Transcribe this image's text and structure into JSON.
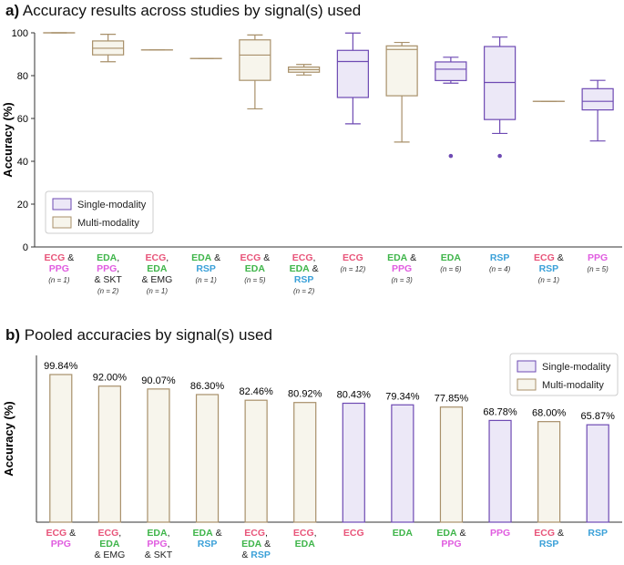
{
  "colors": {
    "single_fill": "#ece8f7",
    "single_edge": "#6e4ab3",
    "multi_fill": "#f7f5ec",
    "multi_edge": "#a8906a",
    "ECG": "#e8557a",
    "PPG": "#e05ce0",
    "EDA": "#3fb54a",
    "RSP": "#3aa0d8",
    "SKT": "#222222",
    "EMG": "#222222"
  },
  "chart_data": [
    {
      "panel": "a)",
      "type": "box",
      "title": "Accuracy results across studies by signal(s) used",
      "ylabel": "Accuracy (%)",
      "ylim": [
        0,
        100
      ],
      "yticks": [
        0,
        20,
        40,
        60,
        80,
        100
      ],
      "legend": {
        "position": "lower-left",
        "entries": [
          "Single-modality",
          "Multi-modality"
        ]
      },
      "groups": [
        {
          "label": [
            [
              "ECG",
              " &"
            ],
            [
              "PPG"
            ]
          ],
          "n": "(n = 1)",
          "modality": "multi",
          "min": 100,
          "q1": 100,
          "median": 100,
          "q3": 100,
          "max": 100,
          "outliers": []
        },
        {
          "label": [
            [
              "EDA",
              ","
            ],
            [
              "PPG",
              ","
            ],
            [
              "& SKT"
            ]
          ],
          "n": "(n = 2)",
          "modality": "multi",
          "min": 86.5,
          "q1": 89.7,
          "median": 92.8,
          "q3": 96.2,
          "max": 99.3,
          "outliers": []
        },
        {
          "label": [
            [
              "ECG",
              ","
            ],
            [
              "EDA"
            ],
            [
              "& EMG"
            ]
          ],
          "n": "(n = 1)",
          "modality": "multi",
          "min": 92,
          "q1": 92,
          "median": 92,
          "q3": 92,
          "max": 92,
          "outliers": []
        },
        {
          "label": [
            [
              "EDA",
              " &"
            ],
            [
              "RSP"
            ]
          ],
          "n": "(n = 1)",
          "modality": "multi",
          "min": 88,
          "q1": 88,
          "median": 88,
          "q3": 88,
          "max": 88,
          "outliers": []
        },
        {
          "label": [
            [
              "ECG",
              " &"
            ],
            [
              "EDA"
            ]
          ],
          "n": "(n = 5)",
          "modality": "multi",
          "min": 64.5,
          "q1": 77.8,
          "median": 89.6,
          "q3": 96.7,
          "max": 99,
          "outliers": []
        },
        {
          "label": [
            [
              "ECG",
              ","
            ],
            [
              "EDA",
              " &"
            ],
            [
              "RSP"
            ]
          ],
          "n": "(n = 2)",
          "modality": "multi",
          "min": 80.3,
          "q1": 81.6,
          "median": 82.8,
          "q3": 84,
          "max": 85.2,
          "outliers": []
        },
        {
          "label": [
            [
              "ECG"
            ]
          ],
          "n": "(n = 12)",
          "modality": "single",
          "min": 57.5,
          "q1": 69.8,
          "median": 86.6,
          "q3": 91.8,
          "max": 99.9,
          "outliers": []
        },
        {
          "label": [
            [
              "EDA",
              " &"
            ],
            [
              "PPG"
            ]
          ],
          "n": "(n = 3)",
          "modality": "multi",
          "min": 49,
          "q1": 70.6,
          "median": 92.2,
          "q3": 93.9,
          "max": 95.5,
          "outliers": []
        },
        {
          "label": [
            [
              "EDA"
            ]
          ],
          "n": "(n = 6)",
          "modality": "single",
          "min": 76.5,
          "q1": 77.7,
          "median": 83,
          "q3": 86.4,
          "max": 88.6,
          "outliers": [
            42.5
          ]
        },
        {
          "label": [
            [
              "RSP"
            ]
          ],
          "n": "(n = 4)",
          "modality": "single",
          "min": 53,
          "q1": 59.5,
          "median": 76.8,
          "q3": 93.6,
          "max": 98,
          "outliers": [
            42.5
          ]
        },
        {
          "label": [
            [
              "ECG",
              " &"
            ],
            [
              "RSP"
            ]
          ],
          "n": "(n = 1)",
          "modality": "multi",
          "min": 68,
          "q1": 68,
          "median": 68,
          "q3": 68,
          "max": 68,
          "outliers": []
        },
        {
          "label": [
            [
              "PPG"
            ]
          ],
          "n": "(n = 5)",
          "modality": "single",
          "min": 49.5,
          "q1": 64,
          "median": 68,
          "q3": 73.9,
          "max": 77.8,
          "outliers": []
        }
      ]
    },
    {
      "panel": "b)",
      "type": "bar",
      "title": "Pooled accuracies by signal(s) used",
      "ylabel": "Accuracy (%)",
      "legend": {
        "position": "top-right",
        "entries": [
          "Single-modality",
          "Multi-modality"
        ]
      },
      "bars": [
        {
          "label": [
            [
              "ECG",
              " &"
            ],
            [
              "PPG"
            ]
          ],
          "value": 99.84,
          "text": "99.84%",
          "modality": "multi"
        },
        {
          "label": [
            [
              "ECG",
              ","
            ],
            [
              "EDA"
            ],
            [
              "& EMG"
            ]
          ],
          "value": 92.0,
          "text": "92.00%",
          "modality": "multi"
        },
        {
          "label": [
            [
              "EDA",
              ","
            ],
            [
              "PPG",
              ","
            ],
            [
              "& SKT"
            ]
          ],
          "value": 90.07,
          "text": "90.07%",
          "modality": "multi"
        },
        {
          "label": [
            [
              "EDA",
              " &"
            ],
            [
              "RSP"
            ]
          ],
          "value": 86.3,
          "text": "86.30%",
          "modality": "multi"
        },
        {
          "label": [
            [
              "ECG",
              ","
            ],
            [
              "EDA",
              " &"
            ],
            [
              "& ",
              "RSP"
            ]
          ],
          "value": 82.46,
          "text": "82.46%",
          "modality": "multi"
        },
        {
          "label": [
            [
              "ECG",
              ","
            ],
            [
              "EDA"
            ]
          ],
          "value": 80.92,
          "text": "80.92%",
          "modality": "multi"
        },
        {
          "label": [
            [
              "ECG"
            ]
          ],
          "value": 80.43,
          "text": "80.43%",
          "modality": "single"
        },
        {
          "label": [
            [
              "EDA"
            ]
          ],
          "value": 79.34,
          "text": "79.34%",
          "modality": "single"
        },
        {
          "label": [
            [
              "EDA",
              " &"
            ],
            [
              "PPG"
            ]
          ],
          "value": 77.85,
          "text": "77.85%",
          "modality": "multi"
        },
        {
          "label": [
            [
              "PPG"
            ]
          ],
          "value": 68.78,
          "text": "68.78%",
          "modality": "single"
        },
        {
          "label": [
            [
              "ECG",
              " &"
            ],
            [
              "RSP"
            ]
          ],
          "value": 68.0,
          "text": "68.00%",
          "modality": "multi"
        },
        {
          "label": [
            [
              "RSP"
            ]
          ],
          "value": 65.87,
          "text": "65.87%",
          "modality": "single"
        }
      ]
    }
  ]
}
